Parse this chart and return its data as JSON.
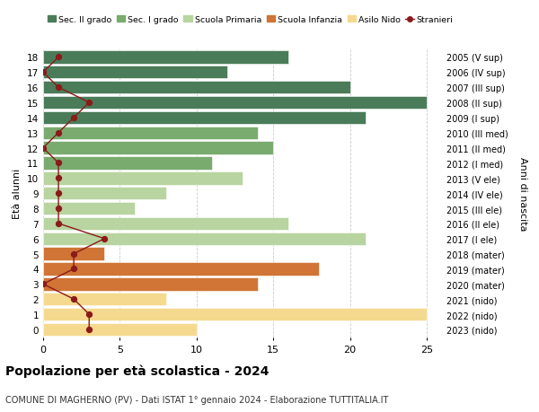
{
  "ages": [
    18,
    17,
    16,
    15,
    14,
    13,
    12,
    11,
    10,
    9,
    8,
    7,
    6,
    5,
    4,
    3,
    2,
    1,
    0
  ],
  "years": [
    "2005 (V sup)",
    "2006 (IV sup)",
    "2007 (III sup)",
    "2008 (II sup)",
    "2009 (I sup)",
    "2010 (III med)",
    "2011 (II med)",
    "2012 (I med)",
    "2013 (V ele)",
    "2014 (IV ele)",
    "2015 (III ele)",
    "2016 (II ele)",
    "2017 (I ele)",
    "2018 (mater)",
    "2019 (mater)",
    "2020 (mater)",
    "2021 (nido)",
    "2022 (nido)",
    "2023 (nido)"
  ],
  "bar_values": [
    16,
    12,
    20,
    25,
    21,
    14,
    15,
    11,
    13,
    8,
    6,
    16,
    21,
    4,
    18,
    14,
    8,
    25,
    10
  ],
  "bar_colors": [
    "#4a7c59",
    "#4a7c59",
    "#4a7c59",
    "#4a7c59",
    "#4a7c59",
    "#7aab6e",
    "#7aab6e",
    "#7aab6e",
    "#b8d4a0",
    "#b8d4a0",
    "#b8d4a0",
    "#b8d4a0",
    "#b8d4a0",
    "#d07535",
    "#d07535",
    "#d07535",
    "#f5d98e",
    "#f5d98e",
    "#f5d98e"
  ],
  "stranieri_values": [
    1,
    0,
    1,
    3,
    2,
    1,
    0,
    1,
    1,
    1,
    1,
    1,
    4,
    2,
    2,
    0,
    2,
    3,
    3
  ],
  "stranieri_color": "#8b1a1a",
  "legend_labels": [
    "Sec. II grado",
    "Sec. I grado",
    "Scuola Primaria",
    "Scuola Infanzia",
    "Asilo Nido",
    "Stranieri"
  ],
  "legend_colors": [
    "#4a7c59",
    "#7aab6e",
    "#b8d4a0",
    "#d07535",
    "#f5d98e",
    "#8b1a1a"
  ],
  "ylabel_left": "Età alunni",
  "ylabel_right": "Anni di nascita",
  "title": "Popolazione per età scolastica - 2024",
  "subtitle": "COMUNE DI MAGHERNO (PV) - Dati ISTAT 1° gennaio 2024 - Elaborazione TUTTITALIA.IT",
  "xlim": [
    0,
    26
  ],
  "background_color": "#ffffff",
  "bar_height": 0.85,
  "grid_color": "#cccccc"
}
